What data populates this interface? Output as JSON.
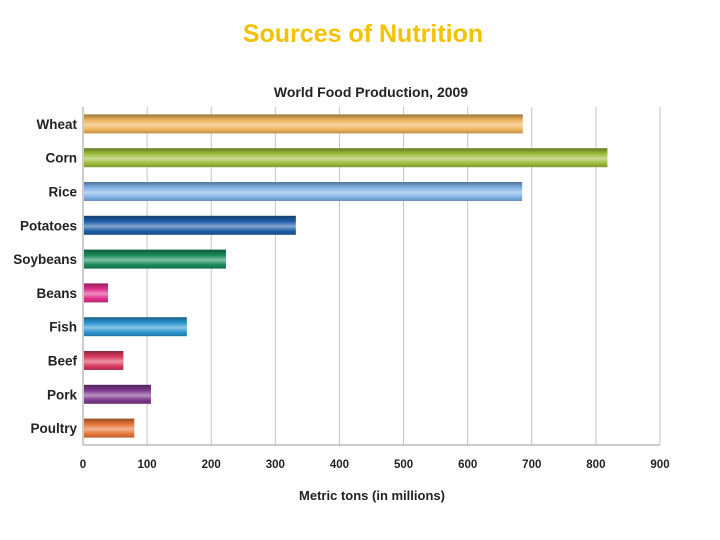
{
  "slide": {
    "title": "Sources of Nutrition"
  },
  "chart_data": {
    "type": "bar",
    "orientation": "horizontal",
    "title": "World Food Production, 2009",
    "xlabel": "Metric tons (in millions)",
    "ylabel": "",
    "xlim": [
      0,
      900
    ],
    "x_ticks": [
      0,
      100,
      200,
      300,
      400,
      500,
      600,
      700,
      800,
      900
    ],
    "grid": "vertical",
    "categories": [
      "Wheat",
      "Corn",
      "Rice",
      "Potatoes",
      "Soybeans",
      "Beans",
      "Fish",
      "Beef",
      "Pork",
      "Poultry"
    ],
    "values": [
      686,
      818,
      685,
      332,
      223,
      39,
      162,
      63,
      106,
      80
    ],
    "colors": [
      "#EFB35A",
      "#9DBD3A",
      "#7FB2E5",
      "#1F5FA8",
      "#1A8A5A",
      "#E0308A",
      "#2A95CF",
      "#D93A5E",
      "#7E3A8E",
      "#E8763A"
    ]
  }
}
